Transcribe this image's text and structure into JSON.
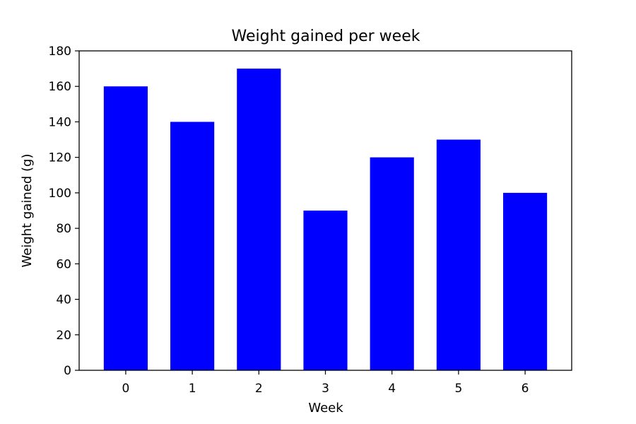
{
  "chart_data": {
    "type": "bar",
    "title": "Weight gained per week",
    "xlabel": "Week",
    "ylabel": "Weight gained (g)",
    "categories": [
      "0",
      "1",
      "2",
      "3",
      "4",
      "5",
      "6"
    ],
    "values": [
      160,
      140,
      170,
      90,
      120,
      130,
      100
    ],
    "ylim": [
      0,
      180
    ],
    "yticks": [
      0,
      20,
      40,
      60,
      80,
      100,
      120,
      140,
      160,
      180
    ],
    "xlim": [
      -0.7,
      6.7
    ],
    "bar_width": 0.66,
    "bar_color": "#0000ff",
    "grid": false,
    "legend": "none"
  }
}
